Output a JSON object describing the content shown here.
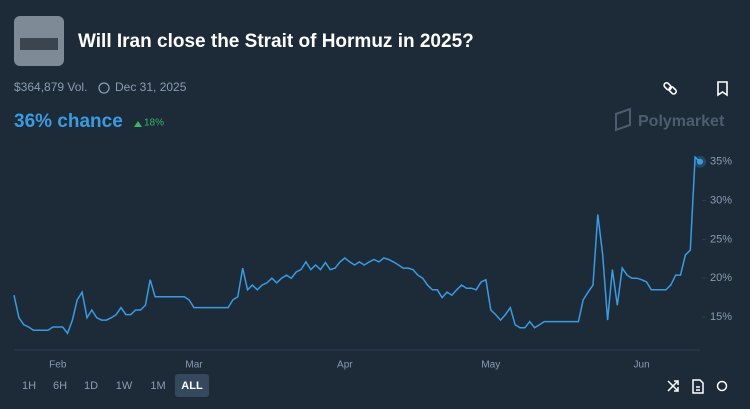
{
  "header": {
    "title": "Will Iran close the Strait of Hormuz in 2025?",
    "volume": "$364,879 Vol.",
    "end_date": "Dec 31, 2025"
  },
  "market": {
    "chance": "36% chance",
    "change": "18%",
    "brand": "Polymarket"
  },
  "range_buttons": [
    "1H",
    "6H",
    "1D",
    "1W",
    "1M",
    "ALL"
  ],
  "chart_data": {
    "type": "line",
    "categories": [
      null,
      null,
      null,
      null,
      null,
      null,
      null,
      null,
      null,
      "Feb",
      null,
      null,
      null,
      null,
      null,
      null,
      null,
      null,
      null,
      null,
      null,
      null,
      null,
      null,
      null,
      null,
      null,
      null,
      null,
      null,
      null,
      null,
      null,
      null,
      null,
      null,
      null,
      "Mar",
      null,
      null,
      null,
      null,
      null,
      null,
      null,
      null,
      null,
      null,
      null,
      null,
      null,
      null,
      null,
      null,
      null,
      null,
      null,
      null,
      null,
      null,
      null,
      null,
      null,
      null,
      null,
      null,
      null,
      null,
      "Apr",
      null,
      null,
      null,
      null,
      null,
      null,
      null,
      null,
      null,
      null,
      null,
      null,
      null,
      null,
      null,
      null,
      null,
      null,
      null,
      null,
      null,
      null,
      null,
      null,
      null,
      null,
      null,
      null,
      null,
      "May",
      null,
      null,
      null,
      null,
      null,
      null,
      null,
      null,
      null,
      null,
      null,
      null,
      null,
      null,
      null,
      null,
      null,
      null,
      null,
      null,
      null,
      null,
      null,
      null,
      null,
      null,
      null,
      null,
      null,
      null,
      "Jun",
      null,
      null,
      null,
      null,
      null,
      null,
      null,
      null,
      null,
      null,
      null,
      null
    ],
    "series": [
      {
        "color": "#3a9be0",
        "values": [
          17.8,
          14.9,
          14.0,
          13.7,
          13.3,
          13.3,
          13.3,
          13.3,
          13.7,
          13.7,
          13.7,
          12.9,
          14.6,
          17.2,
          18.2,
          14.9,
          15.9,
          14.9,
          14.6,
          14.6,
          14.9,
          15.3,
          16.2,
          15.3,
          15.3,
          15.9,
          15.9,
          16.5,
          19.8,
          17.6,
          17.6,
          17.6,
          17.6,
          17.6,
          17.6,
          17.6,
          17.2,
          16.2,
          16.2,
          16.2,
          16.2,
          16.2,
          16.2,
          16.2,
          16.2,
          17.2,
          17.6,
          21.3,
          18.5,
          19.1,
          18.5,
          19.1,
          19.4,
          20.0,
          19.4,
          20.0,
          20.4,
          20.0,
          20.8,
          21.1,
          22.1,
          21.1,
          21.7,
          21.1,
          22.0,
          21.1,
          21.3,
          22.1,
          22.6,
          22.1,
          21.7,
          22.1,
          21.7,
          22.1,
          22.4,
          22.1,
          22.6,
          22.4,
          22.1,
          21.7,
          21.3,
          21.3,
          21.1,
          20.4,
          20.0,
          19.1,
          18.5,
          18.5,
          17.5,
          18.2,
          17.8,
          18.5,
          19.1,
          18.7,
          18.7,
          18.5,
          19.5,
          19.8,
          15.9,
          15.3,
          14.6,
          15.3,
          16.2,
          14.0,
          13.6,
          13.6,
          14.4,
          13.6,
          14.0,
          14.4,
          14.4,
          14.4,
          14.4,
          14.4,
          14.4,
          14.4,
          14.4,
          17.2,
          18.2,
          19.1,
          28.2,
          23.0,
          14.6,
          21.1,
          16.5,
          21.3,
          20.4,
          20.0,
          20.0,
          19.8,
          19.5,
          18.5,
          18.5,
          18.5,
          18.5,
          19.1,
          20.4,
          20.4,
          23.0,
          23.6,
          35.6,
          35.0
        ]
      }
    ],
    "ylim": [
      11,
      36
    ],
    "yticks": [
      {
        "value": 15,
        "label": "15%"
      },
      {
        "value": 20,
        "label": "20%"
      },
      {
        "value": 25,
        "label": "25%"
      },
      {
        "value": 30,
        "label": "30%"
      },
      {
        "value": 35,
        "label": "35%"
      }
    ]
  }
}
